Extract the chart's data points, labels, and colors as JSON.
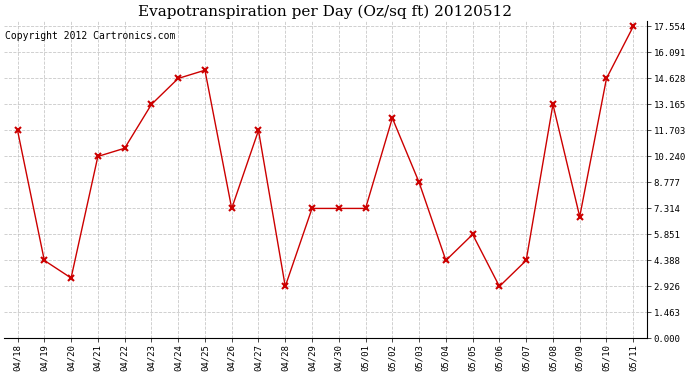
{
  "title": "Evapotranspiration per Day (Oz/sq ft) 20120512",
  "copyright": "Copyright 2012 Cartronics.com",
  "x_labels": [
    "04/18",
    "04/19",
    "04/20",
    "04/21",
    "04/22",
    "04/23",
    "04/24",
    "04/25",
    "04/26",
    "04/27",
    "04/28",
    "04/29",
    "04/30",
    "05/01",
    "05/02",
    "05/03",
    "05/04",
    "05/05",
    "05/06",
    "05/07",
    "05/08",
    "05/09",
    "05/10",
    "05/11"
  ],
  "y_values": [
    11.703,
    4.388,
    3.4,
    10.24,
    10.7,
    13.165,
    14.628,
    15.091,
    7.314,
    11.703,
    2.926,
    7.314,
    7.314,
    7.314,
    12.4,
    8.777,
    4.388,
    5.851,
    2.926,
    4.388,
    13.165,
    6.851,
    14.628,
    17.554
  ],
  "y_ticks": [
    0.0,
    1.463,
    2.926,
    4.388,
    5.851,
    7.314,
    8.777,
    10.24,
    11.703,
    13.165,
    14.628,
    16.091,
    17.554
  ],
  "line_color": "#cc0000",
  "marker": "x",
  "marker_color": "#cc0000",
  "bg_color": "#ffffff",
  "grid_color": "#bbbbbb",
  "ylim": [
    0,
    17.554
  ],
  "title_fontsize": 11,
  "copyright_fontsize": 7
}
